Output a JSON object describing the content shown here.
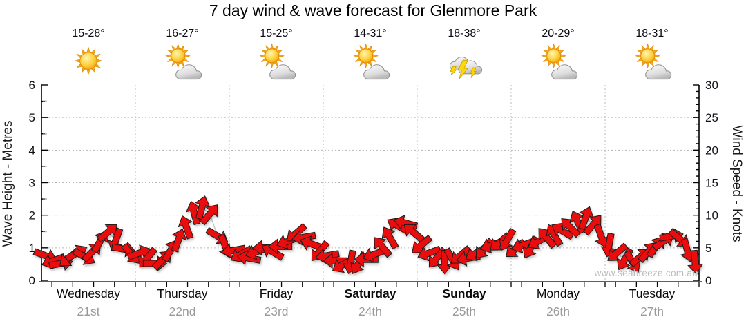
{
  "title": "7 day wind & wave forecast for Glenmore Park",
  "watermark": "www.seabreeze.com.au",
  "left_axis": {
    "label": "Wave Height - Metres",
    "min": 0,
    "max": 6,
    "tick_labels": [
      "0",
      "1",
      "2",
      "3",
      "4",
      "5",
      "6"
    ]
  },
  "right_axis": {
    "label": "Wind Speed - Knots",
    "min": 0,
    "max": 30,
    "tick_labels": [
      "0",
      "5",
      "10",
      "15",
      "20",
      "25",
      "30"
    ]
  },
  "days": [
    {
      "name": "Wednesday",
      "date": "21st",
      "temp": "15-28°",
      "icon": "sunny",
      "weekend": false
    },
    {
      "name": "Thursday",
      "date": "22nd",
      "temp": "16-27°",
      "icon": "partly-cloudy",
      "weekend": false
    },
    {
      "name": "Friday",
      "date": "23rd",
      "temp": "15-25°",
      "icon": "partly-cloudy",
      "weekend": false
    },
    {
      "name": "Saturday",
      "date": "24th",
      "temp": "14-31°",
      "icon": "partly-cloudy",
      "weekend": true
    },
    {
      "name": "Sunday",
      "date": "25th",
      "temp": "18-38°",
      "icon": "thunderstorm",
      "weekend": true
    },
    {
      "name": "Monday",
      "date": "26th",
      "temp": "20-29°",
      "icon": "partly-cloudy",
      "weekend": false
    },
    {
      "name": "Tuesday",
      "date": "27th",
      "temp": "18-31°",
      "icon": "partly-cloudy",
      "weekend": false
    }
  ],
  "chart_data": {
    "type": "scatter",
    "subtype": "wind-direction-arrows",
    "title": "7 day wind & wave forecast for Glenmore Park",
    "categories": [
      "Wednesday 21st",
      "Thursday 22nd",
      "Friday 23rd",
      "Saturday 24th",
      "Sunday 25th",
      "Monday 26th",
      "Tuesday 27th"
    ],
    "ylabel_left": "Wave Height - Metres",
    "ylabel_right": "Wind Speed - Knots",
    "ylim_left": [
      0,
      6
    ],
    "ylim_right": [
      0,
      30
    ],
    "grid": "dotted horizontal at each metre, dotted vertical at day boundaries",
    "samples_per_day": 12,
    "wind_speed_knots": [
      3.8,
      3.0,
      2.6,
      3.4,
      4.2,
      3.6,
      4.4,
      6.0,
      7.4,
      6.2,
      4.8,
      4.0,
      4.2,
      3.4,
      2.6,
      3.2,
      4.6,
      6.2,
      8.2,
      10.4,
      11.2,
      10.2,
      6.8,
      5.2,
      4.6,
      4.0,
      3.4,
      4.4,
      5.0,
      4.4,
      5.2,
      6.0,
      7.2,
      6.6,
      5.6,
      4.4,
      3.8,
      3.0,
      2.4,
      2.8,
      2.6,
      3.2,
      4.0,
      5.2,
      6.6,
      8.4,
      8.8,
      7.4,
      5.4,
      4.2,
      3.4,
      2.8,
      3.2,
      3.8,
      3.4,
      4.2,
      4.8,
      5.4,
      5.8,
      6.2,
      4.8,
      5.4,
      5.0,
      6.0,
      6.6,
      7.0,
      7.6,
      8.2,
      9.0,
      9.6,
      8.6,
      6.8,
      5.4,
      4.2,
      3.2,
      2.8,
      3.6,
      4.4,
      5.2,
      6.0,
      6.8,
      6.4,
      4.6,
      2.8
    ],
    "wind_direction_deg": [
      110,
      250,
      80,
      230,
      60,
      120,
      45,
      30,
      50,
      200,
      100,
      140,
      70,
      220,
      90,
      45,
      30,
      20,
      340,
      345,
      15,
      40,
      120,
      160,
      260,
      240,
      280,
      250,
      270,
      300,
      270,
      250,
      230,
      260,
      290,
      220,
      260,
      270,
      240,
      190,
      210,
      270,
      250,
      320,
      330,
      300,
      285,
      310,
      230,
      250,
      220,
      180,
      150,
      230,
      260,
      240,
      220,
      250,
      230,
      210,
      230,
      250,
      210,
      240,
      320,
      330,
      300,
      315,
      335,
      20,
      40,
      160,
      190,
      230,
      210,
      150,
      50,
      40,
      35,
      55,
      80,
      130,
      165,
      175
    ]
  },
  "colors": {
    "arrow_fill": "#e90f0f",
    "arrow_outline": "#1c1c1c",
    "trend_line": "#c6c6c6",
    "x_axis_line": "#2f6d9e",
    "grid_line": "#b8b8b8",
    "tick_text": "#101018",
    "date_text": "#9a9a9a",
    "watermark_text": "#bcbcbc"
  }
}
